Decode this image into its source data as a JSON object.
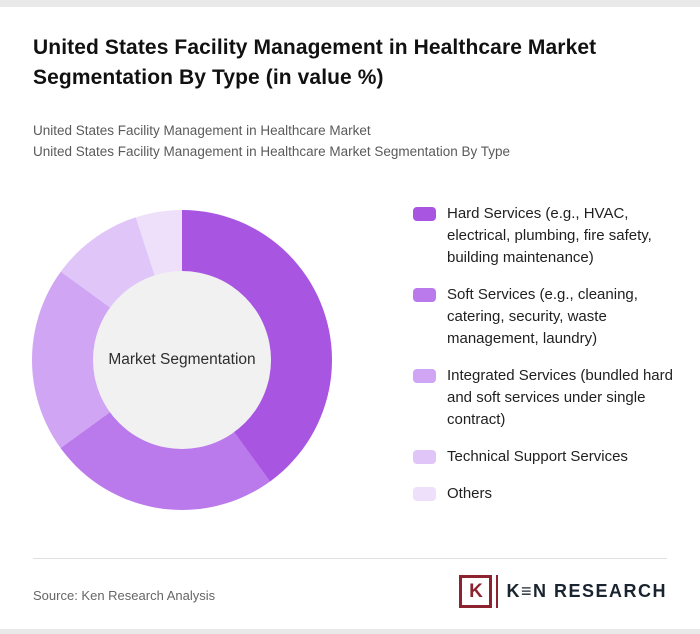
{
  "header": {
    "title": "United States Facility Management in Healthcare Market Segmentation By Type (in value %)",
    "subtitle_line1": "United States Facility Management in Healthcare Market",
    "subtitle_line2": "United States Facility Management in Healthcare Market Segmentation By Type"
  },
  "chart_data": {
    "type": "pie",
    "subtype": "donut",
    "title": "United States Facility Management in Healthcare Market Segmentation By Type (in value %)",
    "center_label": "Market Segmentation",
    "legend_position": "right",
    "start_angle_deg": 0,
    "direction": "clockwise",
    "series": [
      {
        "name": "Hard Services (e.g., HVAC, electrical, plumbing, fire safety, building maintenance)",
        "value": 40,
        "color": "#a855e2"
      },
      {
        "name": "Soft Services (e.g., cleaning, catering, security, waste management, laundry)",
        "value": 25,
        "color": "#bb7aec"
      },
      {
        "name": "Integrated Services (bundled hard and soft services under single contract)",
        "value": 20,
        "color": "#d0a5f3"
      },
      {
        "name": "Technical Support Services",
        "value": 10,
        "color": "#dfc5f8"
      },
      {
        "name": "Others",
        "value": 5,
        "color": "#eee0fb"
      }
    ]
  },
  "footer": {
    "source_text": "Source: Ken Research Analysis",
    "logo_box_letter": "K",
    "logo_text": "K≡N RESEARCH"
  },
  "colors": {
    "brand_maroon": "#8e2330",
    "donut_hole": "#f1f1f2",
    "page_background": "#ffffff"
  }
}
